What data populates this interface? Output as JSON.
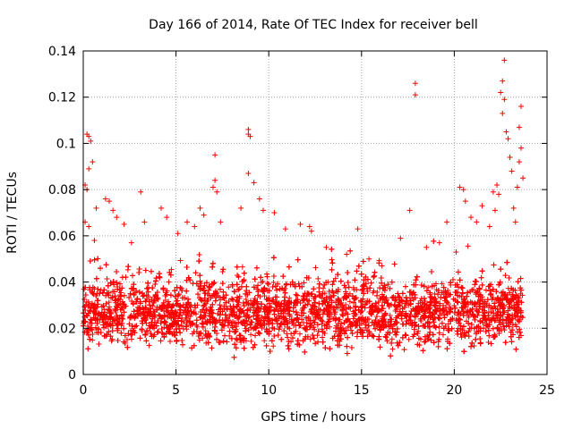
{
  "chart_data": {
    "type": "scatter",
    "title": "Day 166 of 2014, Rate Of TEC Index for receiver bell",
    "xlabel": "GPS time / hours",
    "ylabel": "ROTI / TECUs",
    "xlim": [
      0,
      25
    ],
    "ylim": [
      0,
      0.14
    ],
    "xticks": [
      0,
      5,
      10,
      15,
      20,
      25
    ],
    "yticks": [
      0,
      0.02,
      0.04,
      0.06,
      0.08,
      0.1,
      0.12,
      0.14
    ],
    "xtick_labels": [
      "0",
      "5",
      "10",
      "15",
      "20",
      "25"
    ],
    "ytick_labels": [
      "0",
      "0.02",
      "0.04",
      "0.06",
      "0.08",
      "0.1",
      "0.12",
      "0.14"
    ],
    "grid": true,
    "marker": "+",
    "color": "#ff0000",
    "dense_band": {
      "x_range": [
        0,
        23.7
      ],
      "y_range": [
        0.006,
        0.045
      ]
    },
    "series": [
      {
        "name": "ROTI",
        "points": [
          [
            0.2,
            0.104
          ],
          [
            0.3,
            0.103
          ],
          [
            0.4,
            0.101
          ],
          [
            0.3,
            0.089
          ],
          [
            0.5,
            0.092
          ],
          [
            0.1,
            0.082
          ],
          [
            0.2,
            0.08
          ],
          [
            0.1,
            0.066
          ],
          [
            0.3,
            0.064
          ],
          [
            0.7,
            0.072
          ],
          [
            1.2,
            0.076
          ],
          [
            1.4,
            0.075
          ],
          [
            1.6,
            0.071
          ],
          [
            1.8,
            0.068
          ],
          [
            2.2,
            0.065
          ],
          [
            3.1,
            0.079
          ],
          [
            3.3,
            0.066
          ],
          [
            4.2,
            0.072
          ],
          [
            4.5,
            0.068
          ],
          [
            5.1,
            0.061
          ],
          [
            5.6,
            0.066
          ],
          [
            6.0,
            0.064
          ],
          [
            6.3,
            0.072
          ],
          [
            6.5,
            0.069
          ],
          [
            7.0,
            0.081
          ],
          [
            7.1,
            0.084
          ],
          [
            7.1,
            0.095
          ],
          [
            7.2,
            0.079
          ],
          [
            7.4,
            0.066
          ],
          [
            8.5,
            0.072
          ],
          [
            8.9,
            0.087
          ],
          [
            8.9,
            0.104
          ],
          [
            8.9,
            0.106
          ],
          [
            9.0,
            0.103
          ],
          [
            9.2,
            0.083
          ],
          [
            9.5,
            0.076
          ],
          [
            9.7,
            0.071
          ],
          [
            10.3,
            0.07
          ],
          [
            10.9,
            0.063
          ],
          [
            11.7,
            0.065
          ],
          [
            12.3,
            0.062
          ],
          [
            13.1,
            0.055
          ],
          [
            14.2,
            0.052
          ],
          [
            14.8,
            0.063
          ],
          [
            15.4,
            0.05
          ],
          [
            16.1,
            0.047
          ],
          [
            17.1,
            0.059
          ],
          [
            17.6,
            0.071
          ],
          [
            17.9,
            0.126
          ],
          [
            17.9,
            0.121
          ],
          [
            18.5,
            0.055
          ],
          [
            19.2,
            0.057
          ],
          [
            19.6,
            0.066
          ],
          [
            20.1,
            0.053
          ],
          [
            20.3,
            0.081
          ],
          [
            20.5,
            0.08
          ],
          [
            20.6,
            0.075
          ],
          [
            20.9,
            0.068
          ],
          [
            21.2,
            0.066
          ],
          [
            21.5,
            0.073
          ],
          [
            21.9,
            0.064
          ],
          [
            22.2,
            0.071
          ],
          [
            22.4,
            0.078
          ],
          [
            22.5,
            0.122
          ],
          [
            22.6,
            0.113
          ],
          [
            22.6,
            0.127
          ],
          [
            22.7,
            0.136
          ],
          [
            22.7,
            0.119
          ],
          [
            22.8,
            0.105
          ],
          [
            22.9,
            0.102
          ],
          [
            23.0,
            0.094
          ],
          [
            23.1,
            0.088
          ],
          [
            23.2,
            0.072
          ],
          [
            23.3,
            0.066
          ],
          [
            23.4,
            0.081
          ],
          [
            23.5,
            0.107
          ],
          [
            23.5,
            0.092
          ],
          [
            23.6,
            0.116
          ],
          [
            23.6,
            0.098
          ],
          [
            23.7,
            0.085
          ],
          [
            22.3,
            0.082
          ],
          [
            22.1,
            0.079
          ],
          [
            0.6,
            0.058
          ],
          [
            2.6,
            0.057
          ],
          [
            12.2,
            0.064
          ]
        ]
      }
    ]
  }
}
